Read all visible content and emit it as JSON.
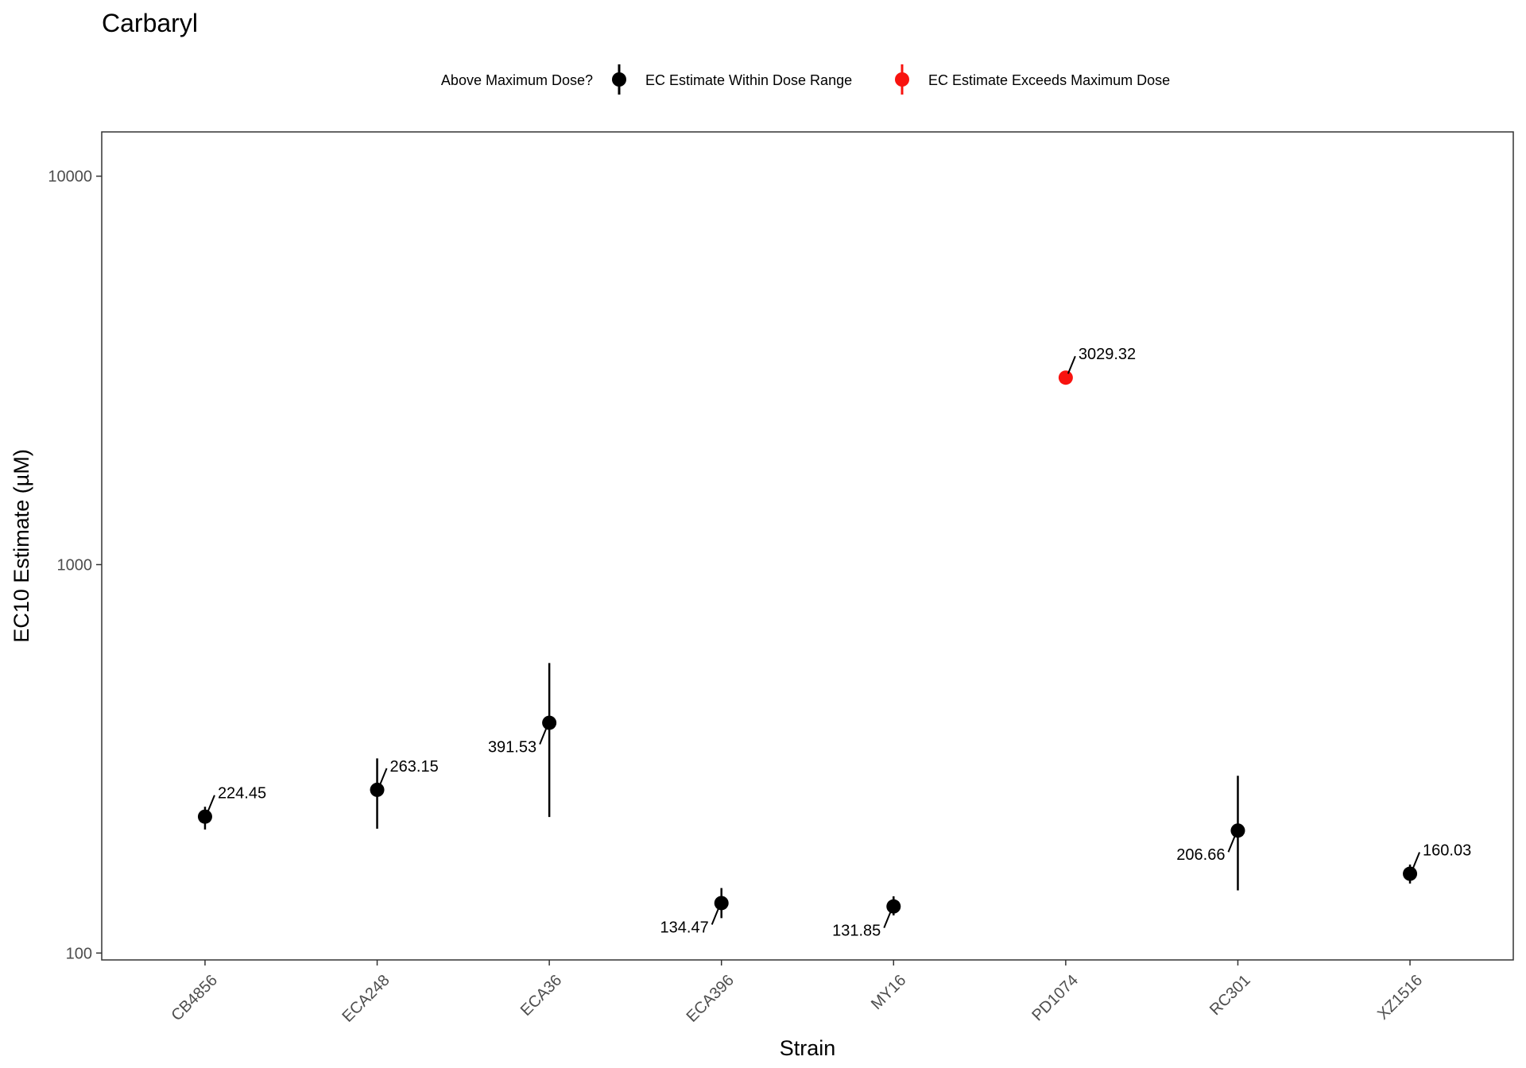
{
  "chart_data": {
    "type": "scatter",
    "title": "Carbaryl",
    "xlabel": "Strain",
    "ylabel": "EC10 Estimate (µM)",
    "y_scale": "log10",
    "ylim": [
      96,
      13000
    ],
    "y_ticks": [
      100,
      1000,
      10000
    ],
    "y_tick_labels": [
      "100",
      "1000",
      "10000"
    ],
    "grid": false,
    "categories": [
      "CB4856",
      "ECA248",
      "ECA36",
      "ECA396",
      "MY16",
      "PD1074",
      "RC301",
      "XZ1516"
    ],
    "legend": {
      "title": "Above Maximum Dose?",
      "position": "top",
      "entries": [
        {
          "label": "EC Estimate Within Dose Range",
          "color": "#000000"
        },
        {
          "label": "EC Estimate Exceeds Maximum Dose",
          "color": "#f8130f"
        }
      ]
    },
    "points": [
      {
        "strain": "CB4856",
        "value": 224.45,
        "label": "224.45",
        "lower": 208,
        "upper": 238,
        "exceeds": false,
        "label_side": "right"
      },
      {
        "strain": "ECA248",
        "value": 263.15,
        "label": "263.15",
        "lower": 209,
        "upper": 317,
        "exceeds": false,
        "label_side": "right"
      },
      {
        "strain": "ECA36",
        "value": 391.53,
        "label": "391.53",
        "lower": 224,
        "upper": 558,
        "exceeds": false,
        "label_side": "left"
      },
      {
        "strain": "ECA396",
        "value": 134.47,
        "label": "134.47",
        "lower": 123,
        "upper": 147,
        "exceeds": false,
        "label_side": "left"
      },
      {
        "strain": "MY16",
        "value": 131.85,
        "label": "131.85",
        "lower": 125,
        "upper": 140,
        "exceeds": false,
        "label_side": "left"
      },
      {
        "strain": "PD1074",
        "value": 3029.32,
        "label": "3029.32",
        "lower": null,
        "upper": null,
        "exceeds": true,
        "label_side": "right"
      },
      {
        "strain": "RC301",
        "value": 206.66,
        "label": "206.66",
        "lower": 145,
        "upper": 286,
        "exceeds": false,
        "label_side": "left"
      },
      {
        "strain": "XZ1516",
        "value": 160.03,
        "label": "160.03",
        "lower": 151,
        "upper": 169,
        "exceeds": false,
        "label_side": "right"
      }
    ]
  }
}
